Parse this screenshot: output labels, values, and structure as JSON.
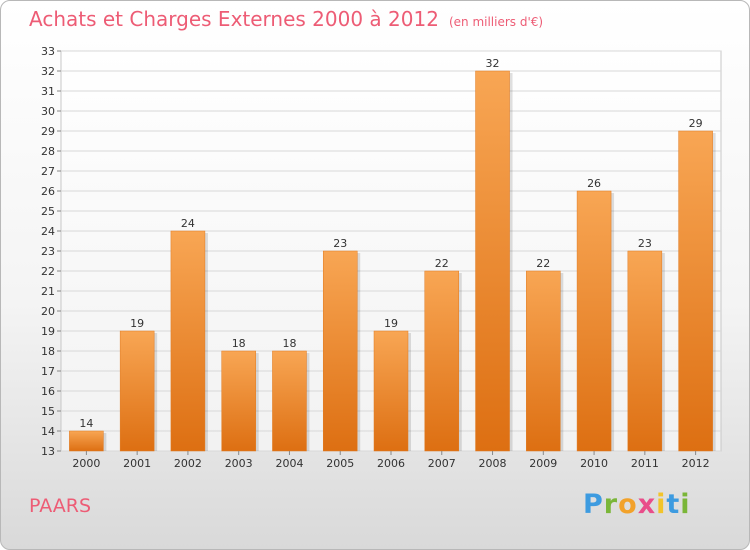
{
  "header": {
    "title": "Achats et Charges Externes 2000 à 2012",
    "subtitle": "(en milliers d'€)"
  },
  "footer": {
    "commune": "PAARS",
    "logo_letters": [
      "P",
      "r",
      "o",
      "x",
      "i",
      "t",
      "i"
    ]
  },
  "colors": {
    "title": "#ed5c75",
    "bar_light": "#f8a654",
    "bar_dark": "#dd6f12",
    "grid": "#d8d8d8"
  },
  "chart_data": {
    "type": "bar",
    "title": "Achats et Charges Externes 2000 à 2012",
    "subtitle": "(en milliers d'€)",
    "categories": [
      "2000",
      "2001",
      "2002",
      "2003",
      "2004",
      "2005",
      "2006",
      "2007",
      "2008",
      "2009",
      "2010",
      "2011",
      "2012"
    ],
    "values": [
      14,
      19,
      24,
      18,
      18,
      23,
      19,
      22,
      32,
      22,
      26,
      23,
      29
    ],
    "ylim": [
      13,
      33
    ],
    "yticks": [
      "13",
      "14",
      "15",
      "16",
      "17",
      "18",
      "19",
      "20",
      "21",
      "22",
      "23",
      "24",
      "25",
      "26",
      "27",
      "28",
      "29",
      "30",
      "31",
      "32",
      "33"
    ],
    "xlabel": "",
    "ylabel": "",
    "grid": true,
    "data_labels": true
  }
}
